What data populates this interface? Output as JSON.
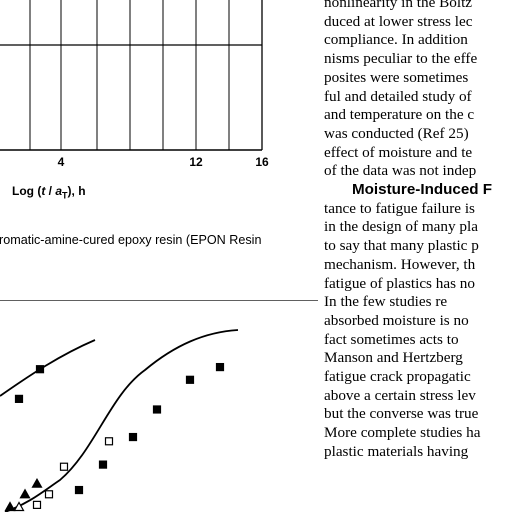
{
  "top_chart": {
    "x_ticks": [
      "4",
      "12",
      "16"
    ],
    "x_label_prefix": "Log (",
    "x_label_var": "t",
    "x_label_mid": " / ",
    "x_label_var2": "a",
    "x_label_sub": "T",
    "x_label_suffix": "), h"
  },
  "caption": "aromatic-amine-cured epoxy resin (EPON Resin",
  "text_column": {
    "lines": [
      "nonlinearity in the Boltz",
      "duced at lower stress lec",
      "compliance. In addition",
      "nisms peculiar to the effe",
      "posites were sometimes",
      "ful and detailed study of",
      "and temperature on the c",
      "was conducted (Ref 25)",
      "effect of moisture and te",
      "of the data was not indep"
    ],
    "section_heading": "Moisture-Induced F",
    "lines_after": [
      "tance to fatigue failure is",
      "in the design of many pla",
      "to say that many plastic p",
      "mechanism. However, th",
      "fatigue of plastics has no",
      "In the few studies re",
      "absorbed moisture is no",
      "fact sometimes acts to",
      "Manson and Hertzberg",
      "fatigue crack propagatic",
      "above a certain stress lev",
      "but the converse was true",
      "More complete studies ha",
      "plastic materials having"
    ]
  },
  "bottom_chart": {
    "chart_data": {
      "type": "scatter",
      "series": [
        {
          "marker": "filled-square",
          "x": [
            0.03,
            0.1
          ],
          "y": [
            0.51,
            0.65
          ]
        },
        {
          "marker": "filled-square",
          "x": [
            0.23,
            0.31,
            0.41,
            0.49,
            0.6,
            0.7
          ],
          "y": [
            0.08,
            0.2,
            0.33,
            0.46,
            0.6,
            0.66
          ]
        },
        {
          "marker": "open-square",
          "x": [
            0.09,
            0.13,
            0.18,
            0.33
          ],
          "y": [
            0.01,
            0.06,
            0.19,
            0.31
          ]
        },
        {
          "marker": "filled-triangle",
          "x": [
            0.0,
            0.05,
            0.09
          ],
          "y": [
            0.0,
            0.06,
            0.11
          ]
        },
        {
          "marker": "open-triangle",
          "x": [
            0.03
          ],
          "y": [
            0.0
          ]
        }
      ]
    }
  }
}
